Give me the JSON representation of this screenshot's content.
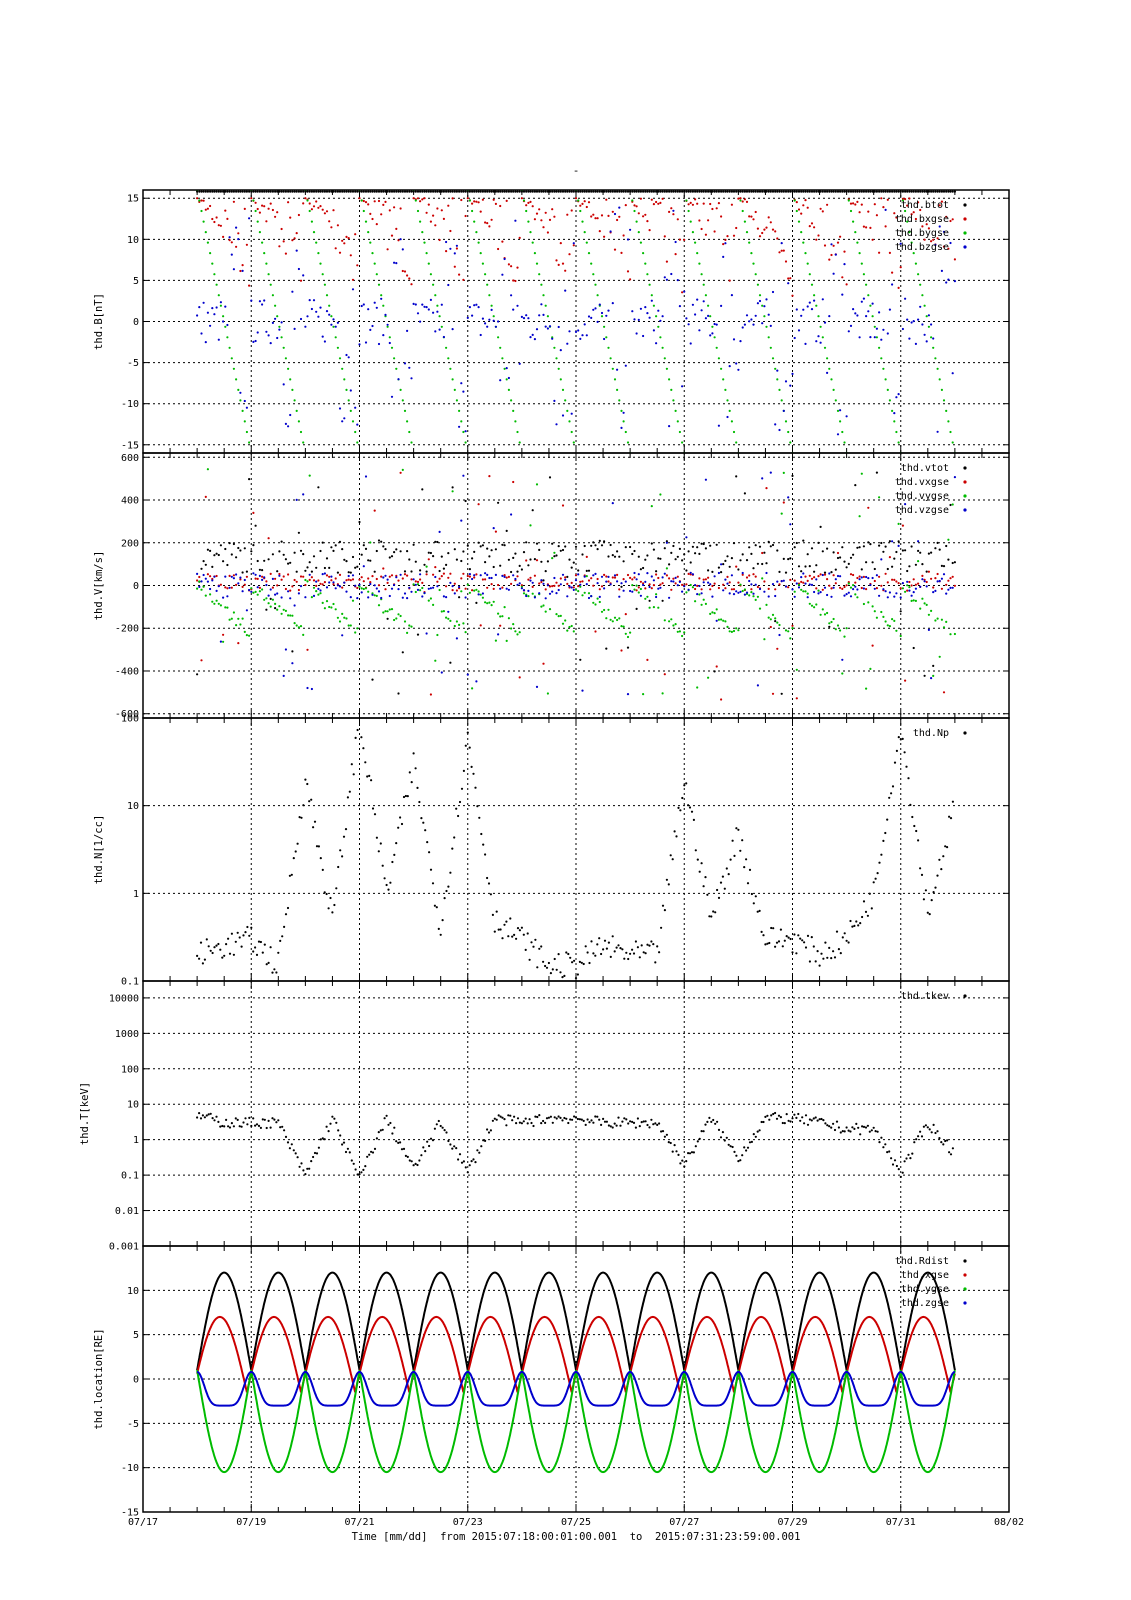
{
  "figure": {
    "title": "-",
    "xlabel": "Time [mm/dd]  from 2015:07:18:00:01:00.001  to  2015:07:31:23:59:00.001",
    "x_ticks": [
      "07/17",
      "07/19",
      "07/21",
      "07/23",
      "07/25",
      "07/27",
      "07/29",
      "07/31",
      "08/02"
    ],
    "x_tick_days": [
      0,
      2,
      4,
      6,
      8,
      10,
      12,
      14,
      16
    ],
    "data_span_days": [
      1.0,
      15.0
    ]
  },
  "colors": {
    "black": "#000000",
    "red": "#cc0000",
    "green": "#00bb00",
    "blue": "#0000cc",
    "grid": "#000000"
  },
  "chart_data": [
    {
      "type": "scatter",
      "ylabel": "thd.B[nT]",
      "ylim": [
        -16,
        16
      ],
      "yscale": "linear",
      "y_ticks": [
        {
          "v": 15,
          "label": "15"
        },
        {
          "v": 10,
          "label": "10"
        },
        {
          "v": 5,
          "label": "5"
        },
        {
          "v": 0,
          "label": "0"
        },
        {
          "v": -5,
          "label": "-5"
        },
        {
          "v": -10,
          "label": "-10"
        },
        {
          "v": -15,
          "label": "-15"
        }
      ],
      "grid": true,
      "legend_position": "top-right",
      "series": [
        {
          "name": "thd.btot",
          "color": "#000000"
        },
        {
          "name": "thd.bxgse",
          "color": "#cc0000"
        },
        {
          "name": "thd.bygse",
          "color": "#00bb00"
        },
        {
          "name": "thd.bzgse",
          "color": "#0000cc"
        }
      ]
    },
    {
      "type": "scatter",
      "ylabel": "thd.V[km/s]",
      "ylim": [
        -620,
        620
      ],
      "yscale": "linear",
      "y_ticks": [
        {
          "v": 600,
          "label": "600"
        },
        {
          "v": 400,
          "label": "400"
        },
        {
          "v": 200,
          "label": "200"
        },
        {
          "v": 0,
          "label": "0"
        },
        {
          "v": -200,
          "label": "-200"
        },
        {
          "v": -400,
          "label": "-400"
        },
        {
          "v": -600,
          "label": "-600"
        }
      ],
      "grid": true,
      "legend_position": "top-right",
      "series": [
        {
          "name": "thd.vtot",
          "color": "#000000"
        },
        {
          "name": "thd.vxgse",
          "color": "#cc0000"
        },
        {
          "name": "thd.vygse",
          "color": "#00bb00"
        },
        {
          "name": "thd.vzgse",
          "color": "#0000cc"
        }
      ]
    },
    {
      "type": "scatter",
      "ylabel": "thd.N[1/cc]",
      "ylim": [
        0.1,
        100
      ],
      "yscale": "log",
      "y_ticks": [
        {
          "v": 100,
          "label": "100"
        },
        {
          "v": 10,
          "label": "10"
        },
        {
          "v": 1,
          "label": "1"
        },
        {
          "v": 0.1,
          "label": "0.1"
        }
      ],
      "grid": true,
      "legend_position": "top-right",
      "series": [
        {
          "name": "thd.Np",
          "color": "#000000",
          "sample_days": [
            1.0,
            1.5,
            2.0,
            2.5,
            3.0,
            3.5,
            4.0,
            4.5,
            5.0,
            5.5,
            6.0,
            6.5,
            7.0,
            7.5,
            8.0,
            8.5,
            9.0,
            9.5,
            10.0,
            10.5,
            11.0,
            11.5,
            12.0,
            12.5,
            13.0,
            13.5,
            14.0,
            14.5,
            15.0
          ],
          "sample_values": [
            0.2,
            0.25,
            0.3,
            0.15,
            20,
            0.5,
            100,
            1,
            30,
            0.4,
            60,
            0.5,
            0.3,
            0.15,
            0.15,
            0.25,
            0.2,
            0.2,
            20,
            0.5,
            5,
            0.3,
            0.3,
            0.2,
            0.3,
            1,
            80,
            0.6,
            10
          ]
        }
      ]
    },
    {
      "type": "scatter",
      "ylabel": "thd.T[keV]",
      "ylim": [
        0.001,
        30000
      ],
      "yscale": "log",
      "y_ticks": [
        {
          "v": 10000,
          "label": "10000"
        },
        {
          "v": 1000,
          "label": "1000"
        },
        {
          "v": 100,
          "label": "100"
        },
        {
          "v": 10,
          "label": "10"
        },
        {
          "v": 1,
          "label": "1"
        },
        {
          "v": 0.1,
          "label": "0.1"
        },
        {
          "v": 0.01,
          "label": "0.01"
        },
        {
          "v": 0.001,
          "label": "0.001"
        }
      ],
      "grid": true,
      "legend_position": "top-right",
      "series": [
        {
          "name": "thd.tkev",
          "color": "#000000",
          "sample_days": [
            1.0,
            1.5,
            2.0,
            2.5,
            3.0,
            3.5,
            4.0,
            4.5,
            5.0,
            5.5,
            6.0,
            6.5,
            7.0,
            7.5,
            8.0,
            8.5,
            9.0,
            9.5,
            10.0,
            10.5,
            11.0,
            11.5,
            12.0,
            12.5,
            13.0,
            13.5,
            14.0,
            14.5,
            15.0
          ],
          "sample_values": [
            5,
            3,
            3,
            3,
            0.1,
            4,
            0.08,
            4,
            0.15,
            3,
            0.12,
            4,
            3,
            4,
            4,
            3,
            3,
            3,
            0.2,
            4,
            0.3,
            4,
            4,
            3,
            2,
            2,
            0.12,
            3,
            0.4
          ]
        }
      ]
    },
    {
      "type": "line",
      "ylabel": "thd.location[RE]",
      "ylim": [
        -15,
        15
      ],
      "yscale": "linear",
      "y_ticks": [
        {
          "v": 10,
          "label": "10"
        },
        {
          "v": 5,
          "label": "5"
        },
        {
          "v": 0,
          "label": "0"
        },
        {
          "v": -5,
          "label": "-5"
        },
        {
          "v": -10,
          "label": "-10"
        },
        {
          "v": -15,
          "label": "-15"
        }
      ],
      "grid": true,
      "legend_position": "top-right",
      "orbit_period_days": 1.0,
      "series": [
        {
          "name": "thd.Rdist",
          "color": "#000000",
          "min": 1.0,
          "max": 12.0
        },
        {
          "name": "thd.xgse",
          "color": "#cc0000",
          "min": -1.5,
          "max": 7.0
        },
        {
          "name": "thd.ygse",
          "color": "#00bb00",
          "min": -10.5,
          "max": 1.0
        },
        {
          "name": "thd.zgse",
          "color": "#0000cc",
          "min": -3.0,
          "max": 0.8
        }
      ]
    }
  ]
}
